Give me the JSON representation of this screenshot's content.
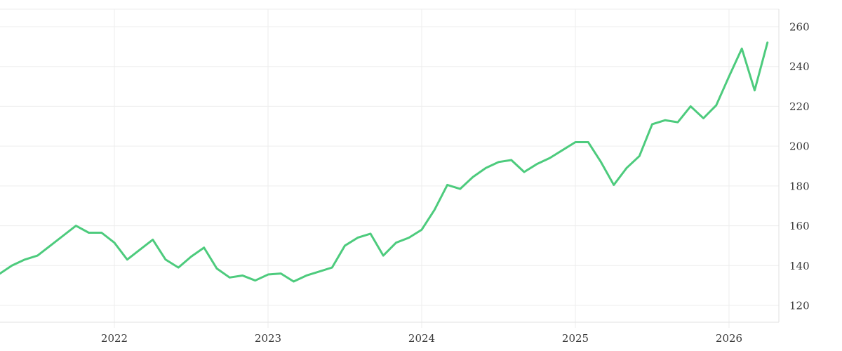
{
  "chart_data": {
    "type": "line",
    "title": "",
    "legend": "none",
    "grid": true,
    "background": "#ffffff",
    "grid_color": "#ededed",
    "axis_line_color": "#e2e2e2",
    "label_color": "#3a3a3a",
    "series": [
      {
        "name": "price",
        "color": "#4dcb7d",
        "points": [
          {
            "date": "2021-04",
            "value": 136
          },
          {
            "date": "2021-05",
            "value": 140
          },
          {
            "date": "2021-06",
            "value": 143
          },
          {
            "date": "2021-07",
            "value": 145
          },
          {
            "date": "2021-08",
            "value": 150
          },
          {
            "date": "2021-09",
            "value": 155
          },
          {
            "date": "2021-10",
            "value": 160
          },
          {
            "date": "2021-11",
            "value": 156.5
          },
          {
            "date": "2021-12",
            "value": 156.5
          },
          {
            "date": "2022-01",
            "value": 151.5
          },
          {
            "date": "2022-02",
            "value": 143
          },
          {
            "date": "2022-03",
            "value": 148
          },
          {
            "date": "2022-04",
            "value": 153
          },
          {
            "date": "2022-05",
            "value": 143
          },
          {
            "date": "2022-06",
            "value": 139
          },
          {
            "date": "2022-07",
            "value": 144.5
          },
          {
            "date": "2022-08",
            "value": 149
          },
          {
            "date": "2022-09",
            "value": 138.5
          },
          {
            "date": "2022-10",
            "value": 134
          },
          {
            "date": "2022-11",
            "value": 135
          },
          {
            "date": "2022-12",
            "value": 132.5
          },
          {
            "date": "2023-01",
            "value": 135.5
          },
          {
            "date": "2023-02",
            "value": 136
          },
          {
            "date": "2023-03",
            "value": 132
          },
          {
            "date": "2023-04",
            "value": 135
          },
          {
            "date": "2023-05",
            "value": 137
          },
          {
            "date": "2023-06",
            "value": 139
          },
          {
            "date": "2023-07",
            "value": 150
          },
          {
            "date": "2023-08",
            "value": 154
          },
          {
            "date": "2023-09",
            "value": 156
          },
          {
            "date": "2023-10",
            "value": 145
          },
          {
            "date": "2023-11",
            "value": 151.5
          },
          {
            "date": "2023-12",
            "value": 154
          },
          {
            "date": "2024-01",
            "value": 158
          },
          {
            "date": "2024-02",
            "value": 168
          },
          {
            "date": "2024-03",
            "value": 180.5
          },
          {
            "date": "2024-04",
            "value": 178.5
          },
          {
            "date": "2024-05",
            "value": 184.5
          },
          {
            "date": "2024-06",
            "value": 189
          },
          {
            "date": "2024-07",
            "value": 192
          },
          {
            "date": "2024-08",
            "value": 193
          },
          {
            "date": "2024-09",
            "value": 187
          },
          {
            "date": "2024-10",
            "value": 191
          },
          {
            "date": "2024-11",
            "value": 194
          },
          {
            "date": "2024-12",
            "value": 198
          },
          {
            "date": "2025-01",
            "value": 202
          },
          {
            "date": "2025-02",
            "value": 202
          },
          {
            "date": "2025-03",
            "value": 192
          },
          {
            "date": "2025-04",
            "value": 180.5
          },
          {
            "date": "2025-05",
            "value": 189
          },
          {
            "date": "2025-06",
            "value": 195
          },
          {
            "date": "2025-07",
            "value": 211
          },
          {
            "date": "2025-08",
            "value": 213
          },
          {
            "date": "2025-09",
            "value": 212
          },
          {
            "date": "2025-10",
            "value": 220
          },
          {
            "date": "2025-11",
            "value": 214
          },
          {
            "date": "2025-12",
            "value": 220.5
          },
          {
            "date": "2026-01",
            "value": 235
          },
          {
            "date": "2026-02",
            "value": 249
          },
          {
            "date": "2026-03",
            "value": 228
          },
          {
            "date": "2026-04",
            "value": 252
          }
        ]
      }
    ],
    "x_axis": {
      "tick_labels": [
        "2022",
        "2023",
        "2024",
        "2025",
        "2026"
      ],
      "tick_dates": [
        "2022-01",
        "2023-01",
        "2024-01",
        "2025-01",
        "2026-01"
      ]
    },
    "y_axis": {
      "side": "right",
      "tick_values": [
        120,
        140,
        160,
        180,
        200,
        220,
        240,
        260
      ],
      "tick_labels": [
        "120",
        "140",
        "160",
        "180",
        "200",
        "220",
        "240",
        "260"
      ]
    }
  }
}
